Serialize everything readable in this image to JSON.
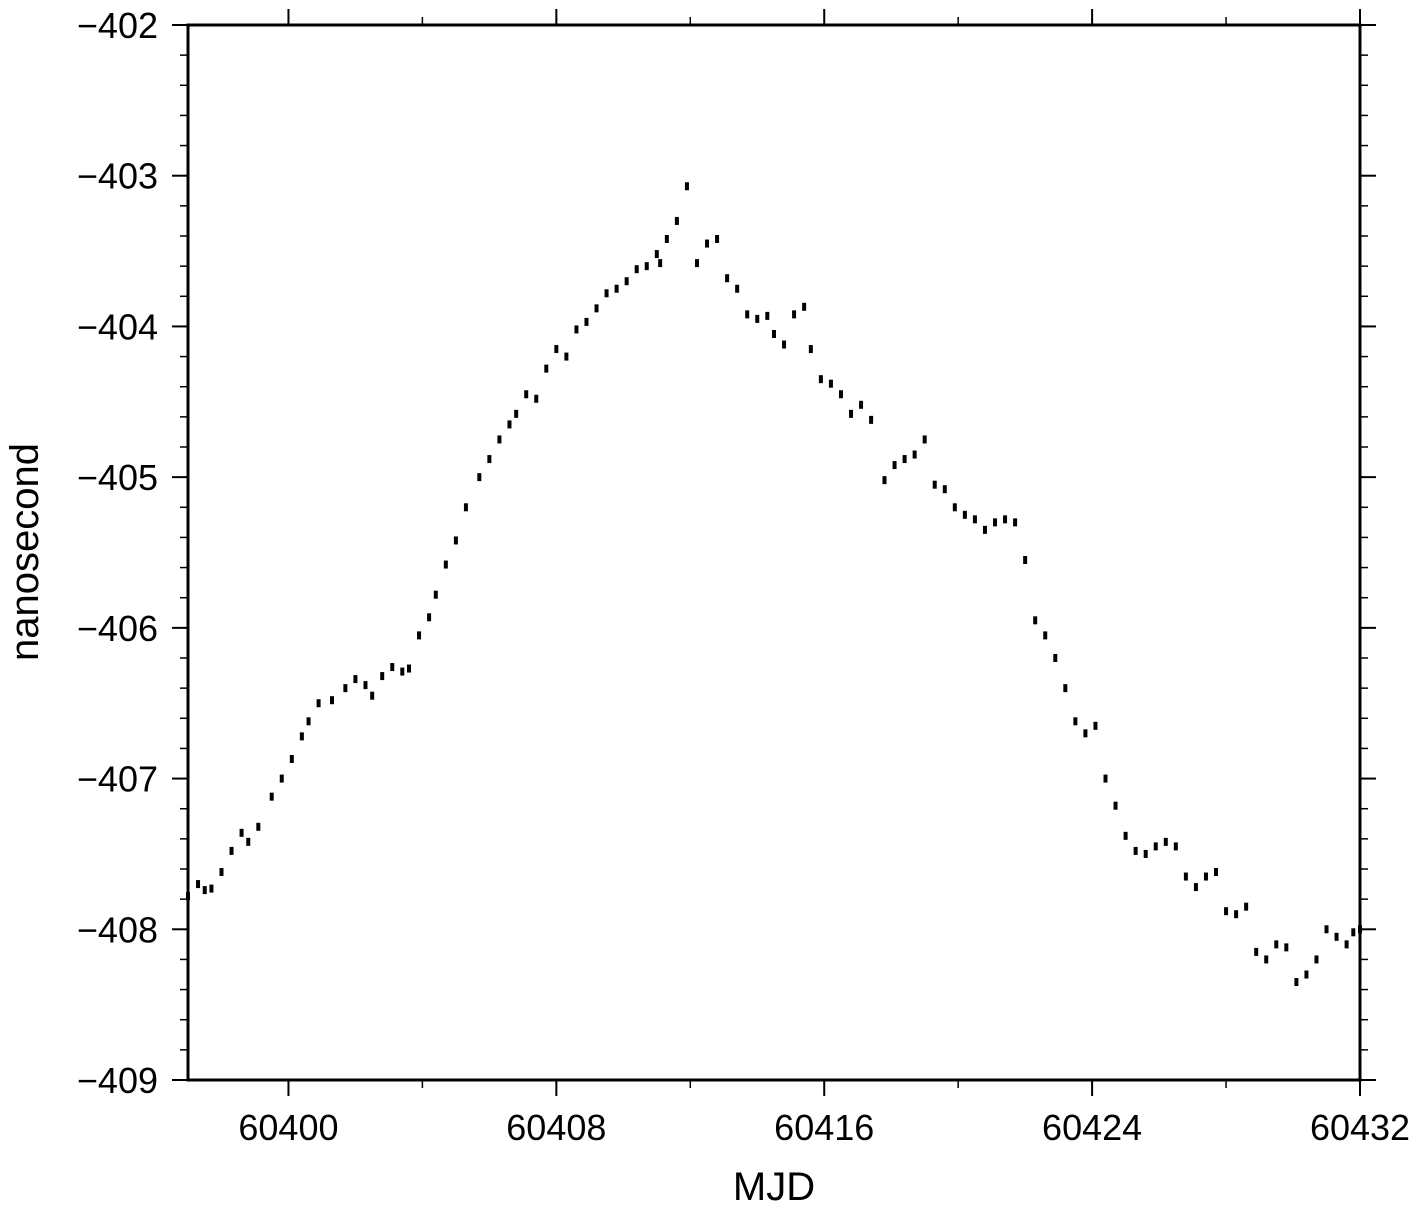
{
  "chart_data": {
    "type": "line",
    "title": "",
    "xlabel": "MJD",
    "ylabel": "nanosecond",
    "xlim": [
      60397,
      60432
    ],
    "ylim": [
      -409,
      -402
    ],
    "x_major_ticks": [
      60400,
      60408,
      60416,
      60424,
      60432
    ],
    "x_tick_labels": [
      "60400",
      "60408",
      "60416",
      "60424",
      "60432"
    ],
    "y_major_ticks": [
      -409,
      -408,
      -407,
      -406,
      -405,
      -404,
      -403,
      -402
    ],
    "y_tick_labels": [
      "−409",
      "−408",
      "−407",
      "−406",
      "−405",
      "−404",
      "−403",
      "−402"
    ],
    "grid": false,
    "legend": "none",
    "marker": "small dots",
    "color": "#000000",
    "series": [
      {
        "x": [
          60397.0,
          60397.3,
          60397.5,
          60397.7,
          60398.0,
          60398.3,
          60398.6,
          60398.8,
          60399.1,
          60399.5,
          60399.8,
          60400.1,
          60400.4,
          60400.6,
          60400.9,
          60401.3,
          60401.7,
          60402.0,
          60402.3,
          60402.5,
          60402.8,
          60403.1,
          60403.4,
          60403.6,
          60403.9,
          60404.2,
          60404.4,
          60404.7,
          60405.0,
          60405.3,
          60405.7,
          60406.0,
          60406.3,
          60406.6,
          60406.8,
          60407.1,
          60407.4,
          60407.7,
          60408.0,
          60408.3,
          60408.6,
          60408.9,
          60409.2,
          60409.5,
          60409.8,
          60410.1,
          60410.4,
          60410.7,
          60411.0,
          60411.1,
          60411.3,
          60411.6,
          60411.9,
          60412.2,
          60412.5,
          60412.8,
          60413.1,
          60413.4,
          60413.7,
          60414.0,
          60414.3,
          60414.5,
          60414.8,
          60415.1,
          60415.4,
          60415.6,
          60415.9,
          60416.2,
          60416.5,
          60416.8,
          60417.1,
          60417.4,
          60417.8,
          60418.1,
          60418.4,
          60418.7,
          60419.0,
          60419.3,
          60419.6,
          60419.9,
          60420.2,
          60420.5,
          60420.8,
          60421.1,
          60421.4,
          60421.7,
          60422.0,
          60422.3,
          60422.6,
          60422.9,
          60423.2,
          60423.5,
          60423.8,
          60424.1,
          60424.4,
          60424.7,
          60425.0,
          60425.3,
          60425.6,
          60425.9,
          60426.2,
          60426.5,
          60426.8,
          60427.1,
          60427.4,
          60427.7,
          60428.0,
          60428.3,
          60428.6,
          60428.9,
          60429.2,
          60429.5,
          60429.8,
          60430.1,
          60430.4,
          60430.7,
          60431.0,
          60431.3,
          60431.6,
          60431.8,
          60432.0
        ],
        "y": [
          -407.78,
          -407.7,
          -407.74,
          -407.73,
          -407.62,
          -407.48,
          -407.36,
          -407.42,
          -407.32,
          -407.12,
          -407.0,
          -406.87,
          -406.72,
          -406.62,
          -406.5,
          -406.48,
          -406.4,
          -406.34,
          -406.38,
          -406.45,
          -406.32,
          -406.26,
          -406.29,
          -406.27,
          -406.05,
          -405.93,
          -405.78,
          -405.58,
          -405.42,
          -405.2,
          -405.0,
          -404.88,
          -404.75,
          -404.65,
          -404.58,
          -404.45,
          -404.48,
          -404.28,
          -404.15,
          -404.2,
          -404.02,
          -403.97,
          -403.88,
          -403.78,
          -403.75,
          -403.7,
          -403.62,
          -403.6,
          -403.52,
          -403.58,
          -403.42,
          -403.3,
          -403.07,
          -403.58,
          -403.45,
          -403.42,
          -403.68,
          -403.75,
          -403.92,
          -403.95,
          -403.93,
          -404.05,
          -404.12,
          -403.92,
          -403.87,
          -404.15,
          -404.35,
          -404.38,
          -404.45,
          -404.58,
          -404.52,
          -404.62,
          -405.02,
          -404.92,
          -404.88,
          -404.85,
          -404.75,
          -405.05,
          -405.08,
          -405.2,
          -405.25,
          -405.28,
          -405.35,
          -405.3,
          -405.28,
          -405.3,
          -405.55,
          -405.95,
          -406.05,
          -406.2,
          -406.4,
          -406.62,
          -406.7,
          -406.65,
          -407.0,
          -407.18,
          -407.38,
          -407.48,
          -407.5,
          -407.45,
          -407.42,
          -407.45,
          -407.65,
          -407.72,
          -407.65,
          -407.62,
          -407.88,
          -407.9,
          -407.85,
          -408.15,
          -408.2,
          -408.1,
          -408.12,
          -408.35,
          -408.3,
          -408.2,
          -408.0,
          -408.05,
          -408.1,
          -408.02,
          -408.0
        ]
      }
    ]
  }
}
